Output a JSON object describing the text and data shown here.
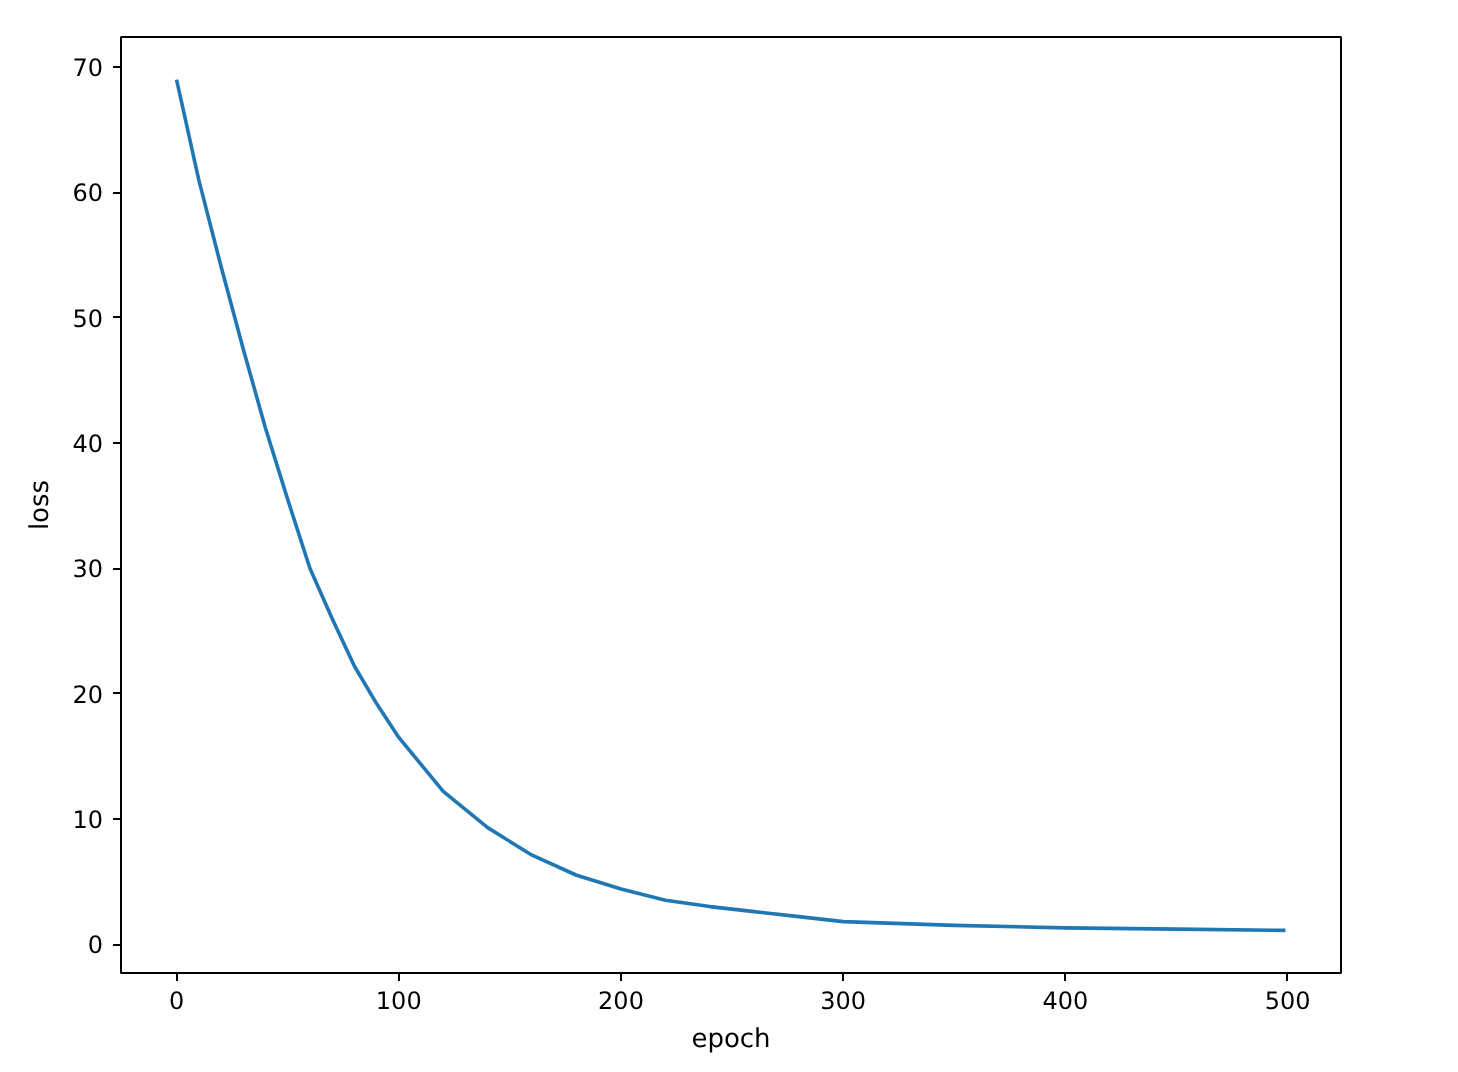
{
  "chart_data": {
    "type": "line",
    "xlabel": "epoch",
    "ylabel": "loss",
    "x": [
      0,
      10,
      20,
      30,
      40,
      50,
      60,
      70,
      80,
      90,
      100,
      120,
      140,
      160,
      180,
      200,
      220,
      240,
      260,
      280,
      300,
      350,
      400,
      450,
      499
    ],
    "series": [
      {
        "color": "#1f77b4",
        "values": [
          69,
          61,
          54.1,
          47.5,
          41.2,
          35.5,
          30,
          26,
          22.2,
          19.2,
          16.5,
          12.2,
          9.3,
          7.1,
          5.5,
          4.4,
          3.5,
          3.0,
          2.6,
          2.2,
          1.8,
          1.5,
          1.3,
          1.2,
          1.1
        ]
      }
    ],
    "xlim": [
      -25,
      524
    ],
    "ylim": [
      -2.3,
      72.4
    ],
    "xticks": [
      0,
      100,
      200,
      300,
      400,
      500
    ],
    "yticks": [
      0,
      10,
      20,
      30,
      40,
      50,
      60,
      70
    ],
    "grid": false,
    "marker": "none",
    "line_style": "solid"
  }
}
